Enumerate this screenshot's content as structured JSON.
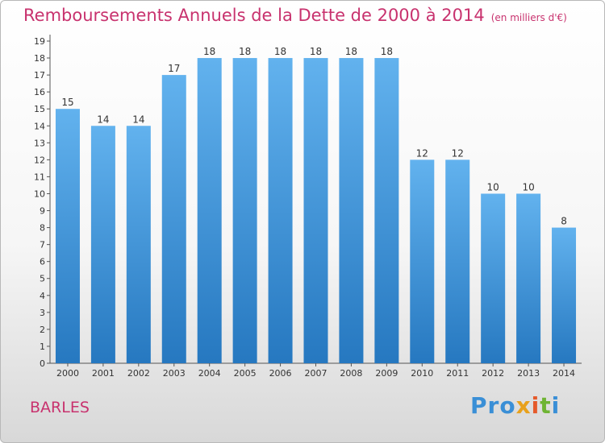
{
  "title": "Remboursements Annuels de la Dette de 2000 à 2014",
  "unit_note": "(en milliers d'€)",
  "commune": "BARLES",
  "logo": {
    "text": "Proxiti",
    "parts": [
      "Pro",
      "x",
      "i",
      "t",
      "i"
    ]
  },
  "colors": {
    "title": "#c8326e",
    "bar_top": "#62b2ee",
    "bar_bottom": "#2678c0",
    "label": "#333333"
  },
  "chart_data": {
    "type": "bar",
    "categories": [
      "2000",
      "2001",
      "2002",
      "2003",
      "2004",
      "2005",
      "2006",
      "2007",
      "2008",
      "2009",
      "2010",
      "2011",
      "2012",
      "2013",
      "2014"
    ],
    "values": [
      15,
      14,
      14,
      17,
      18,
      18,
      18,
      18,
      18,
      18,
      12,
      12,
      10,
      10,
      8
    ],
    "ylim": [
      0,
      19
    ],
    "yticks": [
      0,
      1,
      2,
      3,
      4,
      5,
      6,
      7,
      8,
      9,
      10,
      11,
      12,
      13,
      14,
      15,
      16,
      17,
      18,
      19
    ],
    "grid": false,
    "xlabel": "",
    "ylabel": ""
  }
}
